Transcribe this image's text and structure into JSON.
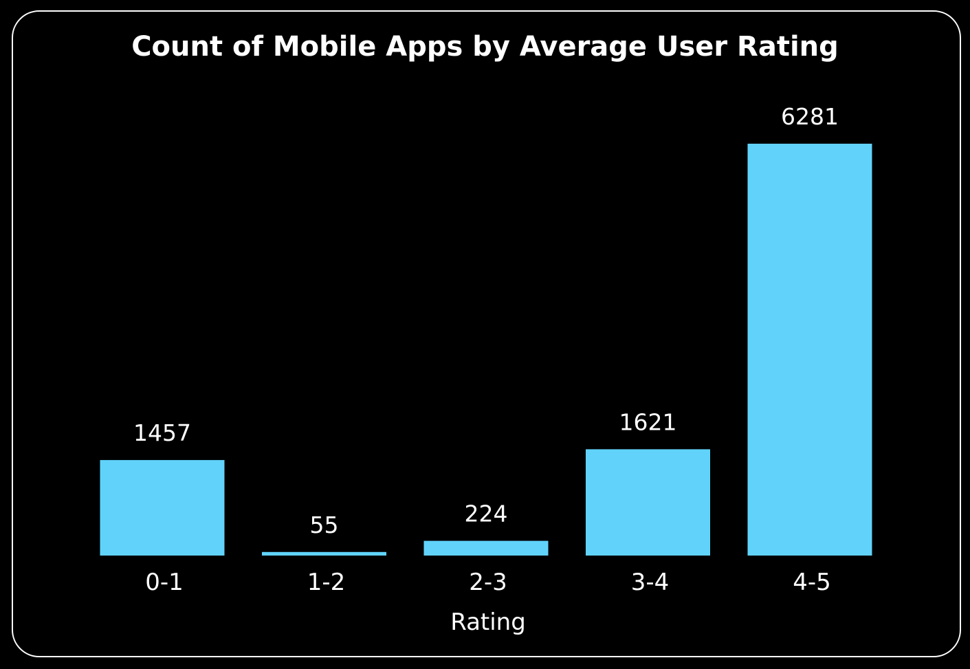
{
  "chart_data": {
    "type": "bar",
    "title": "Count of Mobile Apps by Average User Rating",
    "xlabel": "Rating",
    "ylabel": "",
    "categories": [
      "0-1",
      "1-2",
      "2-3",
      "3-4",
      "4-5"
    ],
    "values": [
      1457,
      55,
      224,
      1621,
      6281
    ],
    "data_labels": [
      "1457",
      "55",
      "224",
      "1621",
      "6281"
    ],
    "ylim": [
      0,
      6281
    ],
    "grid": false,
    "legend": "none",
    "colors": {
      "bar": "#61d3fb",
      "background": "#000000",
      "text": "#ffffff",
      "border": "#ffffff"
    }
  }
}
